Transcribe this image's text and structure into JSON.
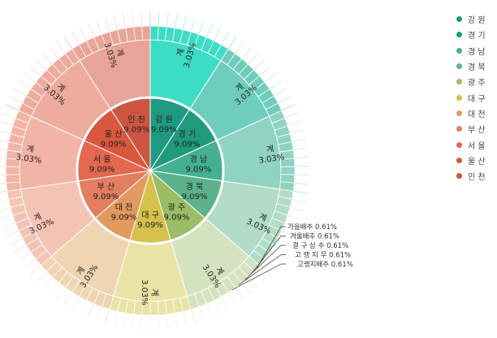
{
  "chart_data": {
    "type": "sunburst",
    "inner_ring": {
      "categories": [
        "강 원",
        "경 기",
        "경 남",
        "경 북",
        "광 주",
        "대 구",
        "대 전",
        "부 산",
        "서 울",
        "울 산",
        "인 천"
      ],
      "values": [
        9.09,
        9.09,
        9.09,
        9.09,
        9.09,
        9.09,
        9.09,
        9.09,
        9.09,
        9.09,
        9.09
      ],
      "value_labels": [
        "9.09%",
        "9.09%",
        "9.09%",
        "9.09%",
        "9.09%",
        "9.09%",
        "9.09%",
        "9.09%",
        "9.09%",
        "9.09%",
        "9.09%"
      ],
      "colors": [
        "#1e9a82",
        "#1f9a7b",
        "#45b08f",
        "#5bb28b",
        "#9bbd63",
        "#d6c14d",
        "#e39a5e",
        "#e47e61",
        "#e4674f",
        "#d9573f",
        "#cc5641"
      ]
    },
    "outer_ring": {
      "subtotal_label": "계",
      "subtotal_value_label": "3.03%",
      "subtotal_values": [
        3.03,
        3.03,
        3.03,
        3.03,
        3.03,
        3.03,
        3.03,
        3.03,
        3.03,
        3.03,
        3.03
      ],
      "item_value": 0.61,
      "items_per_category": 10,
      "outer_colors": [
        "#3ddcc4",
        "#6ecdbc",
        "#8fd3c1",
        "#b2dbc8",
        "#d4e2bf",
        "#eae3a6",
        "#efd5b2",
        "#f3c4b4",
        "#f2b4a6",
        "#eeab9e",
        "#e8a498"
      ]
    },
    "callouts": [
      {
        "label": "가을배추",
        "value": "0.61%"
      },
      {
        "label": "겨울배추",
        "value": "0.61%"
      },
      {
        "label": "결 구 상 추",
        "value": "0.61%"
      },
      {
        "label": "고 랭 지 무",
        "value": "0.61%"
      },
      {
        "label": "고랭지배추",
        "value": "0.61%"
      }
    ],
    "legend": {
      "placement": "right",
      "items": [
        "강 원",
        "경 기",
        "경 남",
        "경 북",
        "광 주",
        "대 구",
        "대 전",
        "부 산",
        "서 울",
        "울 산",
        "인 천"
      ]
    }
  }
}
